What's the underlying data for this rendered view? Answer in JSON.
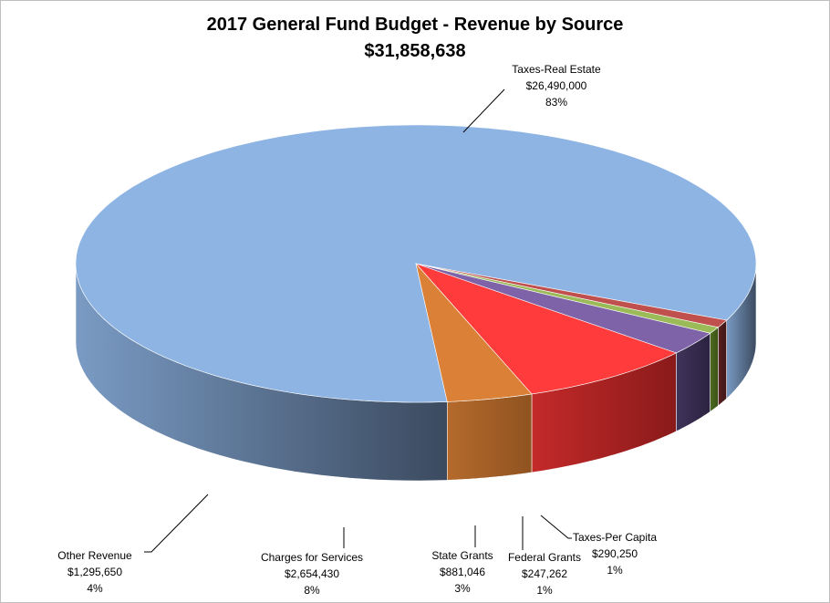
{
  "chart_data": {
    "type": "pie",
    "style": "3d-exploded-perspective",
    "title": "2017 General Fund Budget - Revenue by Source",
    "subtitle": "$31,858,638",
    "slices": [
      {
        "label": "Taxes-Real Estate",
        "value": 26490000,
        "value_text": "$26,490,000",
        "percent_text": "83%",
        "color": "#8EB4E3",
        "side_color_light": "#7a9bc4",
        "side_color_dark": "#3b4a5f"
      },
      {
        "label": "Taxes-Per Capita",
        "value": 290250,
        "value_text": "$290,250",
        "percent_text": "1%",
        "color": "#C0504D",
        "side_color_light": "#5a2020",
        "side_color_dark": "#3e1616"
      },
      {
        "label": "Federal Grants",
        "value": 247262,
        "value_text": "$247,262",
        "percent_text": "1%",
        "color": "#9BBB59",
        "side_color_light": "#4d6b1e",
        "side_color_dark": "#3b5216"
      },
      {
        "label": "State Grants",
        "value": 881046,
        "value_text": "$881,046",
        "percent_text": "3%",
        "color": "#7F63A8",
        "side_color_light": "#40335a",
        "side_color_dark": "#2b2240"
      },
      {
        "label": "Charges for Services",
        "value": 2654430,
        "value_text": "$2,654,430",
        "percent_text": "8%",
        "color": "#FF3B3B",
        "side_color_light": "#c42a2a",
        "side_color_dark": "#8a1a1a"
      },
      {
        "label": "Other Revenue",
        "value": 1295650,
        "value_text": "$1,295,650",
        "percent_text": "4%",
        "color": "#DA8137",
        "side_color_light": "#b56a2c",
        "side_color_dark": "#8f5320"
      }
    ]
  }
}
